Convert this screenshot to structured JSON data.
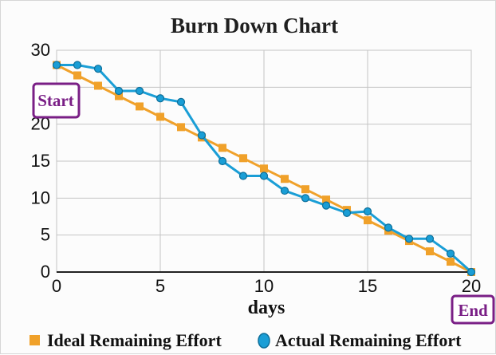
{
  "chart_data": {
    "type": "line",
    "title": "Burn Down Chart",
    "xlabel": "days",
    "ylabel": "",
    "xlim": [
      0,
      20
    ],
    "ylim": [
      0,
      30
    ],
    "x_ticks": [
      0,
      5,
      10,
      15,
      20
    ],
    "y_ticks": [
      0,
      5,
      10,
      15,
      20,
      25,
      30
    ],
    "y_tick_labels": [
      "0",
      "5",
      "10",
      "15",
      "20",
      "",
      "30"
    ],
    "grid": true,
    "legend_position": "bottom",
    "series": [
      {
        "name": "Ideal Remaining Effort",
        "color": "#f0a12a",
        "marker": "square",
        "x": [
          0,
          1,
          2,
          3,
          4,
          5,
          6,
          7,
          8,
          9,
          10,
          11,
          12,
          13,
          14,
          15,
          16,
          17,
          18,
          19,
          20
        ],
        "values": [
          28,
          26.6,
          25.2,
          23.8,
          22.4,
          21,
          19.6,
          18.2,
          16.8,
          15.4,
          14,
          12.6,
          11.2,
          9.8,
          8.4,
          7,
          5.6,
          4.2,
          2.8,
          1.4,
          0
        ]
      },
      {
        "name": "Actual Remaining Effort",
        "color": "#1a9ed6",
        "marker": "circle",
        "x": [
          0,
          1,
          2,
          3,
          4,
          5,
          6,
          7,
          8,
          9,
          10,
          11,
          12,
          13,
          14,
          15,
          16,
          17,
          18,
          19,
          20
        ],
        "values": [
          28,
          28,
          27.5,
          24.5,
          24.5,
          23.5,
          23,
          18.5,
          15,
          13,
          13,
          11,
          10,
          9,
          8,
          8.2,
          6,
          4.5,
          4.5,
          2.5,
          0
        ]
      }
    ],
    "annotations": [
      {
        "text": "Start",
        "color": "#7a1f86"
      },
      {
        "text": "End",
        "color": "#7a1f86"
      }
    ]
  }
}
